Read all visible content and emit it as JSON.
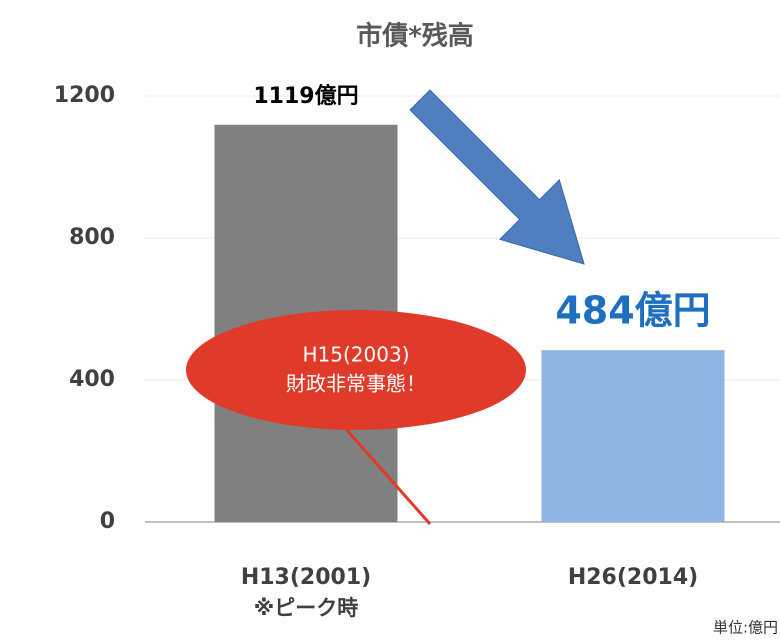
{
  "chart_data": {
    "type": "bar",
    "title": "市債*残高",
    "categories": [
      "H13(2001)",
      "H26(2014)"
    ],
    "values": [
      1119,
      484
    ],
    "value_labels": [
      "1119億円",
      "484億円"
    ],
    "colors": [
      "#808080",
      "#8db4e2"
    ],
    "ylim": [
      0,
      1200
    ],
    "yticks": [
      0,
      400,
      800,
      1200
    ],
    "grid": true,
    "annotations": {
      "peak": "※ピーク時",
      "event_year": "H15(2003)",
      "event": "財政非常事態！",
      "unit": "単位:億円"
    }
  }
}
